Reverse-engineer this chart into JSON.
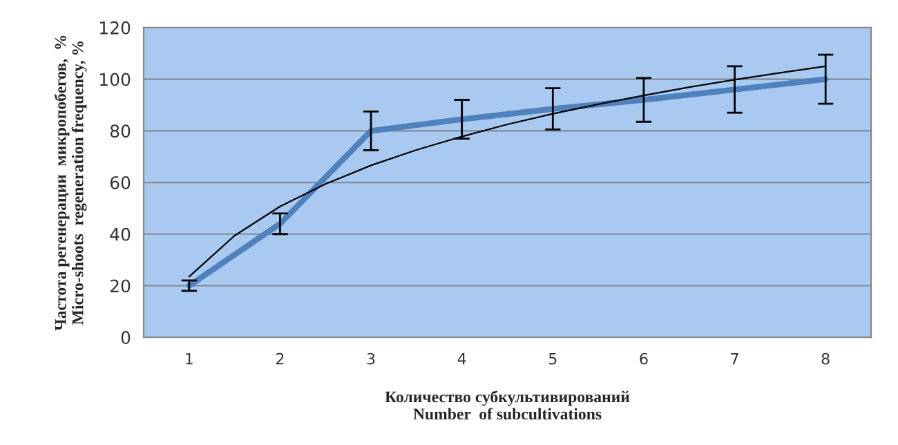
{
  "chart_data": {
    "type": "line",
    "xlabel": "Количество субкультивирований\nNumber  of subcultivations",
    "ylabel": "Частота регенерации  микропобегов,  %\nMicro-shoots  regeneration frequency, %",
    "xlim": [
      0.5,
      8.5
    ],
    "xticks": [
      1,
      2,
      3,
      4,
      5,
      6,
      7,
      8
    ],
    "ylim": [
      0,
      120
    ],
    "yticks": [
      0,
      20,
      40,
      60,
      80,
      100,
      120
    ],
    "grid": "y",
    "series": [
      {
        "color": "#4f81bd",
        "x": [
          1,
          2,
          3,
          4,
          5,
          6,
          7,
          8
        ],
        "values": [
          20,
          44,
          80,
          84.5,
          88.5,
          92,
          96,
          100
        ],
        "errors": [
          2,
          4,
          7.5,
          7.5,
          8,
          8.5,
          9,
          9.5
        ]
      },
      {
        "type": "line",
        "color": "#000000",
        "x": [
          1,
          1.5,
          2,
          2.5,
          3,
          3.5,
          4,
          4.5,
          5,
          5.5,
          6,
          6.5,
          7,
          7.5,
          8
        ],
        "values": [
          23.5,
          39.4,
          50.7,
          59.4,
          66.6,
          72.6,
          77.8,
          82.5,
          86.6,
          90.3,
          93.7,
          96.9,
          99.8,
          102.5,
          105
        ]
      }
    ]
  }
}
